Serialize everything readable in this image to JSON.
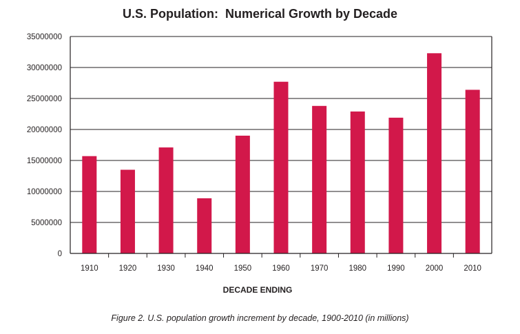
{
  "chart_data": {
    "type": "bar",
    "title": "U.S. Population:  Numerical Growth by Decade",
    "xlabel": "DECADE ENDING",
    "ylabel": "",
    "caption": "Figure 2. U.S. population growth increment by decade, 1900-2010 (in millions)",
    "categories": [
      "1910",
      "1920",
      "1930",
      "1940",
      "1950",
      "1960",
      "1970",
      "1980",
      "1990",
      "2000",
      "2010"
    ],
    "values": [
      15700000,
      13500000,
      17100000,
      8900000,
      19000000,
      27700000,
      23800000,
      22900000,
      21900000,
      32300000,
      26400000
    ],
    "ylim": [
      0,
      35000000
    ],
    "yticks": [
      "0",
      "5000000",
      "10000000",
      "15000000",
      "20000000",
      "25000000",
      "30000000",
      "35000000"
    ],
    "grid": true,
    "bar_color": "#d2184a"
  }
}
